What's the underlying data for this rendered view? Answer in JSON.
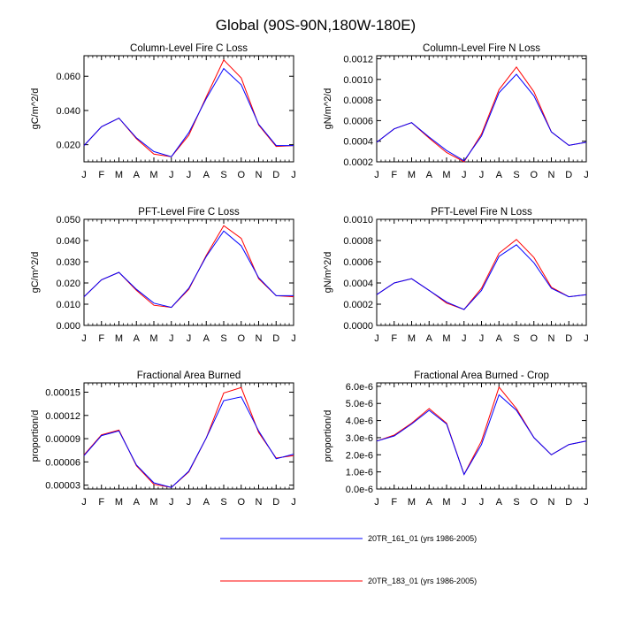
{
  "figure_title": "Global (90S-90N,180W-180E)",
  "legend": [
    {
      "label": "20TR_161_01 (yrs 1986-2005)",
      "color": "#0000ff"
    },
    {
      "label": "20TR_183_01 (yrs 1986-2005)",
      "color": "#ff0000"
    }
  ],
  "chart_data": [
    {
      "type": "line",
      "title": "Column-Level Fire C Loss",
      "xlabel": "",
      "ylabel": "gC/m^2/d",
      "categories": [
        "J",
        "F",
        "M",
        "A",
        "M",
        "J",
        "J",
        "A",
        "S",
        "O",
        "N",
        "D",
        "J"
      ],
      "ylim": [
        0.01,
        0.072
      ],
      "yticks": [
        0.02,
        0.04,
        0.06
      ],
      "ytick_labels": [
        "0.020",
        "0.040",
        "0.060"
      ],
      "series": [
        {
          "name": "20TR_161_01 (yrs 1986-2005)",
          "color": "#0000ff",
          "values": [
            0.0195,
            0.0305,
            0.0355,
            0.024,
            0.016,
            0.013,
            0.027,
            0.047,
            0.0645,
            0.055,
            0.032,
            0.0195,
            0.0195
          ]
        },
        {
          "name": "20TR_183_01 (yrs 1986-2005)",
          "color": "#ff0000",
          "values": [
            0.0195,
            0.0305,
            0.0355,
            0.0235,
            0.0145,
            0.013,
            0.0255,
            0.048,
            0.0695,
            0.059,
            0.0315,
            0.019,
            0.0195
          ]
        }
      ]
    },
    {
      "type": "line",
      "title": "Column-Level Fire N Loss",
      "xlabel": "",
      "ylabel": "gN/m^2/d",
      "categories": [
        "J",
        "F",
        "M",
        "A",
        "M",
        "J",
        "J",
        "A",
        "S",
        "O",
        "N",
        "D",
        "J"
      ],
      "ylim": [
        0.0002,
        0.00123
      ],
      "yticks": [
        0.0002,
        0.0004,
        0.0006,
        0.0008,
        0.001,
        0.0012
      ],
      "ytick_labels": [
        "0.0002",
        "0.0004",
        "0.0006",
        "0.0008",
        "0.0010",
        "0.0012"
      ],
      "series": [
        {
          "name": "20TR_161_01 (yrs 1986-2005)",
          "color": "#0000ff",
          "values": [
            0.00039,
            0.00052,
            0.00058,
            0.00044,
            0.00031,
            0.00021,
            0.00045,
            0.00087,
            0.00105,
            0.00084,
            0.00049,
            0.00036,
            0.00039
          ]
        },
        {
          "name": "20TR_183_01 (yrs 1986-2005)",
          "color": "#ff0000",
          "values": [
            0.00039,
            0.00052,
            0.00058,
            0.00043,
            0.00029,
            0.0002,
            0.00047,
            0.0009,
            0.00112,
            0.00088,
            0.00049,
            0.00036,
            0.00039
          ]
        }
      ]
    },
    {
      "type": "line",
      "title": "PFT-Level Fire C Loss",
      "xlabel": "",
      "ylabel": "gC/m^2/d",
      "categories": [
        "J",
        "F",
        "M",
        "A",
        "M",
        "J",
        "J",
        "A",
        "S",
        "O",
        "N",
        "D",
        "J"
      ],
      "ylim": [
        0.0,
        0.05
      ],
      "yticks": [
        0.0,
        0.01,
        0.02,
        0.03,
        0.04,
        0.05
      ],
      "ytick_labels": [
        "0.000",
        "0.010",
        "0.020",
        "0.030",
        "0.040",
        "0.050"
      ],
      "series": [
        {
          "name": "20TR_161_01 (yrs 1986-2005)",
          "color": "#0000ff",
          "values": [
            0.0135,
            0.0215,
            0.025,
            0.017,
            0.0105,
            0.0085,
            0.0175,
            0.0325,
            0.0445,
            0.0375,
            0.0225,
            0.014,
            0.014
          ]
        },
        {
          "name": "20TR_183_01 (yrs 1986-2005)",
          "color": "#ff0000",
          "values": [
            0.0135,
            0.0215,
            0.025,
            0.0165,
            0.0095,
            0.0085,
            0.017,
            0.033,
            0.047,
            0.041,
            0.022,
            0.014,
            0.0135
          ]
        }
      ]
    },
    {
      "type": "line",
      "title": "PFT-Level Fire N Loss",
      "xlabel": "",
      "ylabel": "gN/m^2/d",
      "categories": [
        "J",
        "F",
        "M",
        "A",
        "M",
        "J",
        "J",
        "A",
        "S",
        "O",
        "N",
        "D",
        "J"
      ],
      "ylim": [
        0.0,
        0.001
      ],
      "yticks": [
        0.0,
        0.0002,
        0.0004,
        0.0006,
        0.0008,
        0.001
      ],
      "ytick_labels": [
        "0.0000",
        "0.0002",
        "0.0004",
        "0.0006",
        "0.0008",
        "0.0010"
      ],
      "series": [
        {
          "name": "20TR_161_01 (yrs 1986-2005)",
          "color": "#0000ff",
          "values": [
            0.00029,
            0.0004,
            0.00044,
            0.00033,
            0.00022,
            0.00015,
            0.00033,
            0.00065,
            0.00076,
            0.00059,
            0.00035,
            0.00027,
            0.00029
          ]
        },
        {
          "name": "20TR_183_01 (yrs 1986-2005)",
          "color": "#ff0000",
          "values": [
            0.00029,
            0.0004,
            0.00044,
            0.00033,
            0.00021,
            0.00015,
            0.00035,
            0.00068,
            0.00081,
            0.00064,
            0.00036,
            0.00027,
            0.00029
          ]
        }
      ]
    },
    {
      "type": "line",
      "title": "Fractional Area Burned",
      "xlabel": "",
      "ylabel": "proportion/d",
      "categories": [
        "J",
        "F",
        "M",
        "A",
        "M",
        "J",
        "J",
        "A",
        "S",
        "O",
        "N",
        "D",
        "J"
      ],
      "ylim": [
        2.5e-05,
        0.000162
      ],
      "yticks": [
        3e-05,
        6e-05,
        9e-05,
        0.00012,
        0.00015
      ],
      "ytick_labels": [
        "0.00003",
        "0.00006",
        "0.00009",
        "0.00012",
        "0.00015"
      ],
      "series": [
        {
          "name": "20TR_161_01 (yrs 1986-2005)",
          "color": "#0000ff",
          "values": [
            6.8e-05,
            9.4e-05,
            0.0001,
            5.6e-05,
            3.3e-05,
            2.7e-05,
            4.8e-05,
            9.1e-05,
            0.000139,
            0.000144,
            0.0001,
            6.4e-05,
            7e-05
          ]
        },
        {
          "name": "20TR_183_01 (yrs 1986-2005)",
          "color": "#ff0000",
          "values": [
            6.9e-05,
            9.5e-05,
            0.000101,
            5.5e-05,
            3.1e-05,
            2.7e-05,
            4.7e-05,
            9.1e-05,
            0.000149,
            0.000156,
            9.8e-05,
            6.5e-05,
            6.8e-05
          ]
        }
      ]
    },
    {
      "type": "line",
      "title": "Fractional Area Burned - Crop",
      "xlabel": "",
      "ylabel": "proportion/d",
      "categories": [
        "J",
        "F",
        "M",
        "A",
        "M",
        "J",
        "J",
        "A",
        "S",
        "O",
        "N",
        "D",
        "J"
      ],
      "ylim": [
        0.0,
        6.2e-06
      ],
      "yticks": [
        0.0,
        1e-06,
        2e-06,
        3e-06,
        4e-06,
        5e-06,
        6e-06
      ],
      "ytick_labels": [
        "0.0e-6",
        "1.0e-6",
        "2.0e-6",
        "3.0e-6",
        "4.0e-6",
        "5.0e-6",
        "6.0e-6"
      ],
      "series": [
        {
          "name": "20TR_161_01 (yrs 1986-2005)",
          "color": "#0000ff",
          "values": [
            2.8e-06,
            3.1e-06,
            3.8e-06,
            4.6e-06,
            3.8e-06,
            8.5e-07,
            2.6e-06,
            5.5e-06,
            4.6e-06,
            3e-06,
            2e-06,
            2.6e-06,
            2.8e-06
          ]
        },
        {
          "name": "20TR_183_01 (yrs 1986-2005)",
          "color": "#ff0000",
          "values": [
            2.8e-06,
            3.15e-06,
            3.85e-06,
            4.7e-06,
            3.85e-06,
            8.5e-07,
            2.8e-06,
            5.95e-06,
            4.7e-06,
            3e-06,
            2e-06,
            2.6e-06,
            2.8e-06
          ]
        }
      ]
    }
  ]
}
